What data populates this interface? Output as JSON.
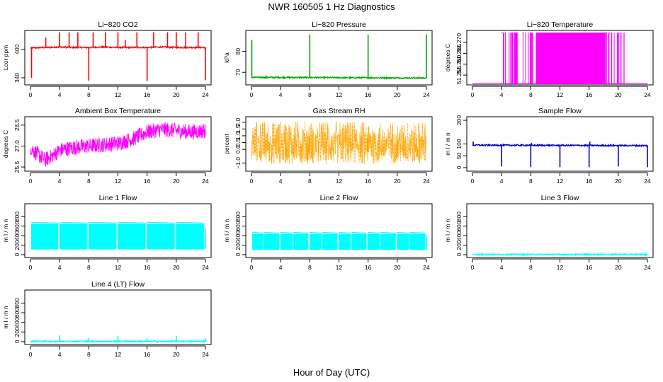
{
  "figure": {
    "title": "NWR  160505  1 Hz Diagnostics",
    "xlabel": "Hour of Day (UTC)"
  },
  "chart_data": [
    {
      "type": "line",
      "title": "Li−820 CO2",
      "ylabel": "Lcor ppm",
      "color": "#ff0000",
      "xlim": [
        0,
        24
      ],
      "ylim": [
        325,
        440
      ],
      "xticks": [
        "0",
        "4",
        "8",
        "12",
        "16",
        "20",
        "24"
      ],
      "yticks": [
        {
          "v": 340,
          "label": "340"
        },
        {
          "v": 400,
          "label": "400"
        }
      ],
      "series": [
        {
          "name": "CO2",
          "baseline": [
            [
              0,
              403
            ],
            [
              2,
              404
            ],
            [
              4,
              405
            ],
            [
              6,
              404
            ],
            [
              8,
              404
            ],
            [
              10,
              405
            ],
            [
              12,
              404
            ],
            [
              14,
              404
            ],
            [
              16,
              404
            ],
            [
              18,
              405
            ],
            [
              20,
              404
            ],
            [
              22,
              404
            ],
            [
              24,
              404
            ]
          ],
          "spikes": [
            [
              0.15,
              340
            ],
            [
              2.1,
              425
            ],
            [
              4.0,
              436
            ],
            [
              5.3,
              436
            ],
            [
              6.5,
              436
            ],
            [
              8.0,
              334
            ],
            [
              8.6,
              436
            ],
            [
              10.3,
              436
            ],
            [
              12.0,
              436
            ],
            [
              13.0,
              420
            ],
            [
              14.6,
              436
            ],
            [
              16.0,
              333
            ],
            [
              16.9,
              436
            ],
            [
              18.8,
              436
            ],
            [
              20.0,
              436
            ],
            [
              21.3,
              436
            ],
            [
              23.0,
              436
            ],
            [
              24.0,
              335
            ]
          ]
        }
      ]
    },
    {
      "type": "line",
      "title": "Li−820 Pressure",
      "ylabel": "kPa",
      "color": "#00aa00",
      "xlim": [
        0,
        24
      ],
      "ylim": [
        64,
        90
      ],
      "xticks": [
        "0",
        "4",
        "8",
        "12",
        "16",
        "20",
        "24"
      ],
      "yticks": [
        {
          "v": 70,
          "label": "70"
        },
        {
          "v": 80,
          "label": "80"
        }
      ],
      "series": [
        {
          "name": "Pressure",
          "baseline": [
            [
              0,
              67.6
            ],
            [
              24,
              67.3
            ]
          ],
          "spikes": [
            [
              0.05,
              85.5
            ],
            [
              8.0,
              88
            ],
            [
              16.0,
              88
            ],
            [
              24.0,
              88
            ]
          ]
        }
      ]
    },
    {
      "type": "line",
      "title": "Li−820 Temperature",
      "ylabel": "degrees C",
      "color": "#ff00ff",
      "xlim": [
        0,
        24
      ],
      "ylim": [
        51.2505,
        51.2755
      ],
      "xticks": [
        "0",
        "4",
        "8",
        "12",
        "16",
        "20",
        "24"
      ],
      "yticks": [
        {
          "v": 51.255,
          "label": "51.255"
        },
        {
          "v": 51.26,
          "label": "51.260"
        },
        {
          "v": 51.265,
          "label": "51.265"
        },
        {
          "v": 51.27,
          "label": "51.270"
        }
      ],
      "series": [
        {
          "name": "Temperature",
          "low": 51.251,
          "high": 51.2745,
          "dense_bands": [
            [
              5.7,
              6.2
            ],
            [
              8.7,
              18.3
            ]
          ],
          "sparse_bands": [
            [
              4.0,
              5.6
            ],
            [
              6.9,
              8.6
            ],
            [
              18.3,
              21.0
            ]
          ]
        }
      ]
    },
    {
      "type": "line",
      "title": "Ambient Box Temperature",
      "ylabel": "degrees C",
      "color": "#ff00ff",
      "xlim": [
        0,
        24
      ],
      "ylim": [
        25.2,
        29.1
      ],
      "xticks": [
        "0",
        "4",
        "8",
        "12",
        "16",
        "20",
        "24"
      ],
      "yticks": [
        {
          "v": 25.5,
          "label": "25.5"
        },
        {
          "v": 27.0,
          "label": "27.0"
        },
        {
          "v": 28.5,
          "label": "28.5"
        }
      ],
      "series": [
        {
          "name": "Box Temp",
          "center": [
            [
              0,
              26.9
            ],
            [
              1,
              26.4
            ],
            [
              2,
              26.0
            ],
            [
              3,
              26.3
            ],
            [
              4,
              26.7
            ],
            [
              6,
              26.9
            ],
            [
              8,
              27.0
            ],
            [
              10,
              27.1
            ],
            [
              12,
              27.2
            ],
            [
              14,
              27.5
            ],
            [
              16,
              28.0
            ],
            [
              18,
              28.2
            ],
            [
              20,
              28.1
            ],
            [
              22,
              28.0
            ],
            [
              24,
              28.1
            ]
          ],
          "spread": 0.55
        }
      ]
    },
    {
      "type": "scatter",
      "title": "Gas Stream RH",
      "ylabel": "percent",
      "color": "#ffa500",
      "xlim": [
        0,
        24
      ],
      "ylim": [
        -1.6,
        2.4
      ],
      "xticks": [
        "0",
        "4",
        "8",
        "12",
        "16",
        "20",
        "24"
      ],
      "yticks": [
        {
          "v": -1.0,
          "label": "−1.0"
        },
        {
          "v": 0.0,
          "label": "0.0"
        },
        {
          "v": 0.5,
          "label": "0.5"
        },
        {
          "v": 1.0,
          "label": "1.0"
        },
        {
          "v": 1.5,
          "label": "1.5"
        },
        {
          "v": 2.0,
          "label": "2.0"
        }
      ],
      "series": [
        {
          "name": "RH",
          "center": 0.5,
          "low": -1.1,
          "high": 2.1
        }
      ]
    },
    {
      "type": "line",
      "title": "Sample Flow",
      "ylabel": "m l / m n",
      "color": "#0000cc",
      "xlim": [
        0,
        24
      ],
      "ylim": [
        -15,
        215
      ],
      "xticks": [
        "0",
        "4",
        "8",
        "12",
        "16",
        "20",
        "24"
      ],
      "yticks": [
        {
          "v": 0,
          "label": "0"
        },
        {
          "v": 50,
          "label": "50"
        },
        {
          "v": 100,
          "label": "100"
        },
        {
          "v": 200,
          "label": "200"
        }
      ],
      "series": [
        {
          "name": "Sample Flow",
          "baseline": [
            [
              0,
              95
            ],
            [
              24,
              93
            ]
          ],
          "spikes": [
            [
              0.1,
              110
            ],
            [
              4.0,
              5
            ],
            [
              8.0,
              2
            ],
            [
              8.1,
              105
            ],
            [
              12.0,
              2
            ],
            [
              16.0,
              2
            ],
            [
              16.1,
              110
            ],
            [
              20.0,
              5
            ],
            [
              24.0,
              2
            ]
          ]
        }
      ]
    },
    {
      "type": "line",
      "title": "Line 1 Flow",
      "ylabel": "m l / m n",
      "color": "#00ffff",
      "xlim": [
        0,
        24
      ],
      "ylim": [
        -60,
        1070
      ],
      "xticks": [
        "0",
        "4",
        "8",
        "12",
        "16",
        "20",
        "24"
      ],
      "yticks": [
        {
          "v": 0,
          "label": "0"
        },
        {
          "v": 200,
          "label": "200"
        },
        {
          "v": 400,
          "label": "400"
        },
        {
          "v": 600,
          "label": "600"
        },
        {
          "v": 800,
          "label": "800"
        }
      ],
      "series": [
        {
          "name": "Line 1",
          "low": 110,
          "high": 650,
          "blocks": [
            [
              0.1,
              3.8
            ],
            [
              3.95,
              7.8
            ],
            [
              7.95,
              11.8
            ],
            [
              11.95,
              15.8
            ],
            [
              15.95,
              19.8
            ],
            [
              19.95,
              23.8
            ]
          ],
          "tail": [
            [
              23.95,
              400
            ],
            [
              24.0,
              560
            ]
          ]
        }
      ]
    },
    {
      "type": "line",
      "title": "Line 2 Flow",
      "ylabel": "m l / m n",
      "color": "#00ffff",
      "xlim": [
        0,
        24
      ],
      "ylim": [
        -60,
        1070
      ],
      "xticks": [
        "0",
        "4",
        "8",
        "12",
        "16",
        "20",
        "24"
      ],
      "yticks": [
        {
          "v": 0,
          "label": "0"
        },
        {
          "v": 200,
          "label": "200"
        },
        {
          "v": 400,
          "label": "400"
        },
        {
          "v": 600,
          "label": "600"
        },
        {
          "v": 800,
          "label": "800"
        }
      ],
      "series": [
        {
          "name": "Line 2",
          "low": 100,
          "high": 440,
          "blocks": [
            [
              0.1,
              1.6
            ],
            [
              1.7,
              3.8
            ],
            [
              3.95,
              5.6
            ],
            [
              5.7,
              7.8
            ],
            [
              7.95,
              9.6
            ],
            [
              9.7,
              11.8
            ],
            [
              11.95,
              13.6
            ],
            [
              13.7,
              15.8
            ],
            [
              15.95,
              17.6
            ],
            [
              17.7,
              19.8
            ],
            [
              19.95,
              21.6
            ],
            [
              21.7,
              23.8
            ]
          ],
          "tail": [
            [
              23.95,
              350
            ],
            [
              24.0,
              420
            ]
          ]
        }
      ]
    },
    {
      "type": "line",
      "title": "Line 3 Flow",
      "ylabel": "m l / m n",
      "color": "#00ffff",
      "xlim": [
        0,
        24
      ],
      "ylim": [
        -60,
        1070
      ],
      "xticks": [
        "0",
        "4",
        "8",
        "12",
        "16",
        "20",
        "24"
      ],
      "yticks": [
        {
          "v": 0,
          "label": "0"
        },
        {
          "v": 200,
          "label": "200"
        },
        {
          "v": 400,
          "label": "400"
        },
        {
          "v": 600,
          "label": "600"
        },
        {
          "v": 800,
          "label": "800"
        }
      ],
      "series": [
        {
          "name": "Line 3",
          "baseline": [
            [
              0,
              3
            ],
            [
              24,
              3
            ]
          ],
          "spikes": []
        }
      ]
    },
    {
      "type": "line",
      "title": "Line 4 (LT) Flow",
      "ylabel": "m l / m n",
      "color": "#00ffff",
      "xlim": [
        0,
        24
      ],
      "ylim": [
        -60,
        1070
      ],
      "xticks": [
        "0",
        "4",
        "8",
        "12",
        "16",
        "20",
        "24"
      ],
      "yticks": [
        {
          "v": 0,
          "label": "0"
        },
        {
          "v": 200,
          "label": "200"
        },
        {
          "v": 400,
          "label": "400"
        },
        {
          "v": 600,
          "label": "600"
        },
        {
          "v": 800,
          "label": "800"
        }
      ],
      "series": [
        {
          "name": "Line 4",
          "baseline": [
            [
              0,
              5
            ],
            [
              24,
              5
            ]
          ],
          "spikes": [
            [
              4.0,
              130
            ],
            [
              8.0,
              70
            ],
            [
              12.0,
              120
            ],
            [
              16.0,
              70
            ],
            [
              20.0,
              120
            ],
            [
              24.0,
              75
            ]
          ]
        }
      ]
    }
  ]
}
